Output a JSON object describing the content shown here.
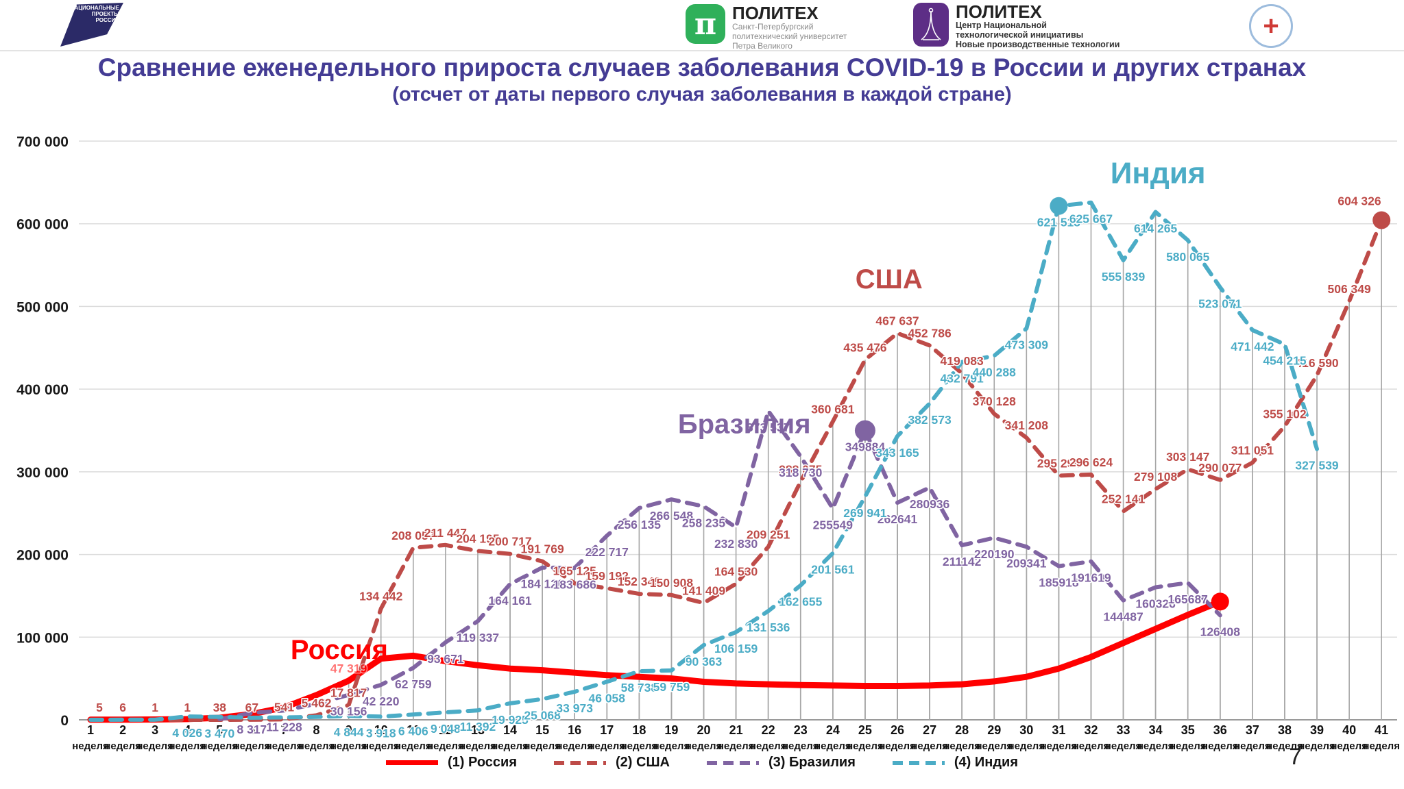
{
  "header": {
    "np_logo": {
      "line1": "НАЦИОНАЛЬНЫЕ",
      "line2": "ПРОЕКТЫ",
      "line3": "РОССИИ"
    },
    "polytech": {
      "symbol": "π",
      "name": "ПОЛИТЕХ",
      "line1": "Санкт-Петербургский",
      "line2": "политехнический университет",
      "line3": "Петра Великого"
    },
    "nti": {
      "name": "ПОЛИТЕХ",
      "line1": "Центр Национальной",
      "line2": "технологической инициативы",
      "line3": "Новые производственные технологии"
    },
    "med": {
      "symbol": "+"
    }
  },
  "title": "Сравнение еженедельного прироста случаев заболевания COVID-19 в России и других странах",
  "subtitle": "(отсчет от даты первого случая заболевания в каждой стране)",
  "page_number": "7",
  "legend": [
    {
      "key": "russia",
      "label": "(1) Россия",
      "color": "#ff0000",
      "dashed": false
    },
    {
      "key": "usa",
      "label": "(2) США",
      "color": "#be4b48",
      "dashed": true
    },
    {
      "key": "brazil",
      "label": "(3) Бразилия",
      "color": "#8064a2",
      "dashed": true
    },
    {
      "key": "india",
      "label": "(4) Индия",
      "color": "#4bacc6",
      "dashed": true
    }
  ],
  "chart_data": {
    "type": "line",
    "title": "Сравнение еженедельного прироста случаев заболевания COVID-19 в России и других странах",
    "ylim": [
      0,
      700000
    ],
    "y_ticks": [
      "0",
      "100 000",
      "200 000",
      "300 000",
      "400 000",
      "500 000",
      "600 000",
      "700 000"
    ],
    "x_unit": "неделя",
    "x_ticks": [
      1,
      2,
      3,
      4,
      5,
      6,
      7,
      8,
      9,
      10,
      11,
      12,
      13,
      14,
      15,
      16,
      17,
      18,
      19,
      20,
      21,
      22,
      23,
      24,
      25,
      26,
      27,
      28,
      29,
      30,
      31,
      32,
      33,
      34,
      35,
      36,
      37,
      38,
      39,
      40,
      41
    ],
    "grid": true,
    "legend_position": "bottom",
    "annotations": [
      {
        "key": "russia",
        "text": "Россия",
        "week": 7.2,
        "value": 97000,
        "color": "#ff0000",
        "size": 40
      },
      {
        "key": "usa",
        "text": "США",
        "week": 24.7,
        "value": 545000,
        "color": "#be4b48",
        "size": 40
      },
      {
        "key": "brazil",
        "text": "Бразилия",
        "week": 19.2,
        "value": 370000,
        "color": "#8064a2",
        "size": 40
      },
      {
        "key": "india",
        "text": "Индия",
        "week": 32.6,
        "value": 675000,
        "color": "#4bacc6",
        "size": 44
      }
    ],
    "series": [
      {
        "key": "russia",
        "name": "(1) Россия",
        "color": "#ff0000",
        "dashed": false,
        "width": 9,
        "label_side": "above",
        "points": [
          {
            "w": 1,
            "v": 150
          },
          {
            "w": 2,
            "v": 250
          },
          {
            "w": 3,
            "v": 400
          },
          {
            "w": 4,
            "v": 900
          },
          {
            "w": 5,
            "v": 2500
          },
          {
            "w": 6,
            "v": 7000
          },
          {
            "w": 7,
            "v": 15000
          },
          {
            "w": 8,
            "v": 30000
          },
          {
            "w": 9,
            "v": 47319,
            "label": "47 319",
            "faint": true
          },
          {
            "w": 10,
            "v": 74000
          },
          {
            "w": 11,
            "v": 77500
          },
          {
            "w": 12,
            "v": 71000
          },
          {
            "w": 13,
            "v": 66000
          },
          {
            "w": 14,
            "v": 62000
          },
          {
            "w": 15,
            "v": 60000
          },
          {
            "w": 16,
            "v": 57000
          },
          {
            "w": 17,
            "v": 54000
          },
          {
            "w": 18,
            "v": 52000
          },
          {
            "w": 19,
            "v": 50000
          },
          {
            "w": 20,
            "v": 46000
          },
          {
            "w": 21,
            "v": 44000
          },
          {
            "w": 22,
            "v": 43000
          },
          {
            "w": 23,
            "v": 42000
          },
          {
            "w": 24,
            "v": 41500
          },
          {
            "w": 25,
            "v": 41000
          },
          {
            "w": 26,
            "v": 41000
          },
          {
            "w": 27,
            "v": 41500
          },
          {
            "w": 28,
            "v": 43000
          },
          {
            "w": 29,
            "v": 46500
          },
          {
            "w": 30,
            "v": 52000
          },
          {
            "w": 31,
            "v": 62000
          },
          {
            "w": 32,
            "v": 76000
          },
          {
            "w": 33,
            "v": 93000
          },
          {
            "w": 34,
            "v": 110000
          },
          {
            "w": 35,
            "v": 127000
          },
          {
            "w": 36,
            "v": 143000,
            "marker": true
          }
        ]
      },
      {
        "key": "usa",
        "name": "(2) США",
        "color": "#be4b48",
        "dashed": true,
        "width": 6,
        "label_side": "above",
        "points": [
          {
            "w": 1,
            "v": 5,
            "label": "5"
          },
          {
            "w": 2,
            "v": 6,
            "label": "6"
          },
          {
            "w": 3,
            "v": 1,
            "label": "1"
          },
          {
            "w": 4,
            "v": 1,
            "label": "1"
          },
          {
            "w": 5,
            "v": 38,
            "label": "38"
          },
          {
            "w": 6,
            "v": 67,
            "label": "67"
          },
          {
            "w": 7,
            "v": 541,
            "label": "541"
          },
          {
            "w": 8,
            "v": 5462,
            "label": "5 462"
          },
          {
            "w": 9,
            "v": 17817,
            "label": "17 817"
          },
          {
            "w": 10,
            "v": 134442,
            "label": "134 442"
          },
          {
            "w": 11,
            "v": 208057,
            "label": "208 057"
          },
          {
            "w": 12,
            "v": 211447,
            "label": "211 447"
          },
          {
            "w": 13,
            "v": 204195,
            "label": "204 195"
          },
          {
            "w": 14,
            "v": 200717,
            "label": "200 717"
          },
          {
            "w": 15,
            "v": 191769,
            "label": "191 769"
          },
          {
            "w": 16,
            "v": 165125,
            "label": "165 125"
          },
          {
            "w": 17,
            "v": 159192,
            "label": "159 192"
          },
          {
            "w": 18,
            "v": 152349,
            "label": "152 349"
          },
          {
            "w": 19,
            "v": 150908,
            "label": "150 908"
          },
          {
            "w": 20,
            "v": 141409,
            "label": "141 409"
          },
          {
            "w": 21,
            "v": 164530,
            "label": "164 530"
          },
          {
            "w": 22,
            "v": 209251,
            "label": "209 251"
          },
          {
            "w": 23,
            "v": 288075,
            "label": "288 075"
          },
          {
            "w": 24,
            "v": 360681,
            "label": "360 681"
          },
          {
            "w": 25,
            "v": 435476,
            "label": "435 476"
          },
          {
            "w": 26,
            "v": 467637,
            "label": "467 637"
          },
          {
            "w": 27,
            "v": 452786,
            "label": "452 786"
          },
          {
            "w": 28,
            "v": 419083,
            "label": "419 083"
          },
          {
            "w": 29,
            "v": 370128,
            "label": "370 128"
          },
          {
            "w": 30,
            "v": 341208,
            "label": "341 208"
          },
          {
            "w": 31,
            "v": 295294,
            "label": "295 294"
          },
          {
            "w": 32,
            "v": 296624,
            "label": "296 624"
          },
          {
            "w": 33,
            "v": 252141,
            "label": "252 141"
          },
          {
            "w": 34,
            "v": 279108,
            "label": "279 108"
          },
          {
            "w": 35,
            "v": 303147,
            "label": "303 147"
          },
          {
            "w": 36,
            "v": 290077,
            "label": "290 077"
          },
          {
            "w": 37,
            "v": 311051,
            "label": "311 051"
          },
          {
            "w": 38,
            "v": 355102,
            "label": "355 102"
          },
          {
            "w": 39,
            "v": 416590,
            "label": "416 590"
          },
          {
            "w": 40,
            "v": 506349,
            "label": "506 349"
          },
          {
            "w": 41,
            "v": 604326,
            "label": "604 326",
            "marker": true
          }
        ]
      },
      {
        "key": "brazil",
        "name": "(3) Бразилия",
        "color": "#8064a2",
        "dashed": true,
        "width": 6,
        "label_side": "below",
        "points": [
          {
            "w": 5,
            "v": 800
          },
          {
            "w": 6,
            "v": 8317,
            "label": "8 317"
          },
          {
            "w": 7,
            "v": 11228,
            "label": "11 228"
          },
          {
            "w": 8,
            "v": 19500
          },
          {
            "w": 9,
            "v": 30156,
            "label": "30 156"
          },
          {
            "w": 10,
            "v": 42220,
            "label": "42 220"
          },
          {
            "w": 11,
            "v": 62759,
            "label": "62 759"
          },
          {
            "w": 12,
            "v": 93671,
            "label": "93 671"
          },
          {
            "w": 13,
            "v": 119337,
            "label": "119 337"
          },
          {
            "w": 14,
            "v": 164161,
            "label": "164 161"
          },
          {
            "w": 15,
            "v": 184120,
            "label": "184 120"
          },
          {
            "w": 16,
            "v": 183686,
            "label": "183 686"
          },
          {
            "w": 17,
            "v": 222717,
            "label": "222 717"
          },
          {
            "w": 18,
            "v": 256135,
            "label": "256 135"
          },
          {
            "w": 19,
            "v": 266548,
            "label": "266 548"
          },
          {
            "w": 20,
            "v": 258235,
            "label": "258 235"
          },
          {
            "w": 21,
            "v": 232830,
            "label": "232 830"
          },
          {
            "w": 22,
            "v": 373537,
            "label": "373 537"
          },
          {
            "w": 23,
            "v": 318730,
            "label": "318 730"
          },
          {
            "w": 24,
            "v": 255549,
            "label": "255549"
          },
          {
            "w": 25,
            "v": 349884,
            "label": "349884",
            "marker": true
          },
          {
            "w": 26,
            "v": 262641,
            "label": "262641"
          },
          {
            "w": 27,
            "v": 280936,
            "label": "280936"
          },
          {
            "w": 28,
            "v": 211142,
            "label": "211142"
          },
          {
            "w": 29,
            "v": 220190,
            "label": "220190"
          },
          {
            "w": 30,
            "v": 209341,
            "label": "209341"
          },
          {
            "w": 31,
            "v": 185918,
            "label": "185918"
          },
          {
            "w": 32,
            "v": 191619,
            "label": "191619"
          },
          {
            "w": 33,
            "v": 144487,
            "label": "144487"
          },
          {
            "w": 34,
            "v": 160326,
            "label": "160326"
          },
          {
            "w": 35,
            "v": 165687,
            "label": "165687"
          },
          {
            "w": 36,
            "v": 126408,
            "label": "126408"
          }
        ]
      },
      {
        "key": "india",
        "name": "(4) Индия",
        "color": "#4bacc6",
        "dashed": true,
        "width": 6,
        "label_side": "below",
        "points": [
          {
            "w": 1,
            "v": 100
          },
          {
            "w": 2,
            "v": 150
          },
          {
            "w": 3,
            "v": 250
          },
          {
            "w": 4,
            "v": 4026,
            "label": "4 026"
          },
          {
            "w": 5,
            "v": 3470,
            "label": "3 470"
          },
          {
            "w": 6,
            "v": 2600
          },
          {
            "w": 7,
            "v": 2900
          },
          {
            "w": 8,
            "v": 3500
          },
          {
            "w": 9,
            "v": 4844,
            "label": "4 844"
          },
          {
            "w": 10,
            "v": 3918,
            "label": "3 918"
          },
          {
            "w": 11,
            "v": 6406,
            "label": "6 406"
          },
          {
            "w": 12,
            "v": 9048,
            "label": "9 048"
          },
          {
            "w": 13,
            "v": 11392,
            "label": "11 392"
          },
          {
            "w": 14,
            "v": 19925,
            "label": "19 925"
          },
          {
            "w": 15,
            "v": 25068,
            "label": "25 068"
          },
          {
            "w": 16,
            "v": 33973,
            "label": "33 973"
          },
          {
            "w": 17,
            "v": 46058,
            "label": "46 058"
          },
          {
            "w": 18,
            "v": 58738,
            "label": "58 738"
          },
          {
            "w": 19,
            "v": 59759,
            "label": "59 759"
          },
          {
            "w": 20,
            "v": 90363,
            "label": "90 363"
          },
          {
            "w": 21,
            "v": 106159,
            "label": "106 159"
          },
          {
            "w": 22,
            "v": 131536,
            "label": "131 536"
          },
          {
            "w": 23,
            "v": 162655,
            "label": "162 655"
          },
          {
            "w": 24,
            "v": 201561,
            "label": "201 561"
          },
          {
            "w": 25,
            "v": 269941,
            "label": "269 941"
          },
          {
            "w": 26,
            "v": 343165,
            "label": "343 165"
          },
          {
            "w": 27,
            "v": 382573,
            "label": "382 573"
          },
          {
            "w": 28,
            "v": 432791,
            "label": "432 791"
          },
          {
            "w": 29,
            "v": 440288,
            "label": "440 288"
          },
          {
            "w": 30,
            "v": 473309,
            "label": "473 309"
          },
          {
            "w": 31,
            "v": 621513,
            "label": "621 513",
            "marker": true
          },
          {
            "w": 32,
            "v": 625667,
            "label": "625 667"
          },
          {
            "w": 33,
            "v": 555839,
            "label": "555 839"
          },
          {
            "w": 34,
            "v": 614265,
            "label": "614 265"
          },
          {
            "w": 35,
            "v": 580065,
            "label": "580 065"
          },
          {
            "w": 36,
            "v": 523071,
            "label": "523 071"
          },
          {
            "w": 37,
            "v": 471442,
            "label": "471 442"
          },
          {
            "w": 38,
            "v": 454215,
            "label": "454 215"
          },
          {
            "w": 39,
            "v": 327539,
            "label": "327 539"
          }
        ]
      }
    ]
  }
}
